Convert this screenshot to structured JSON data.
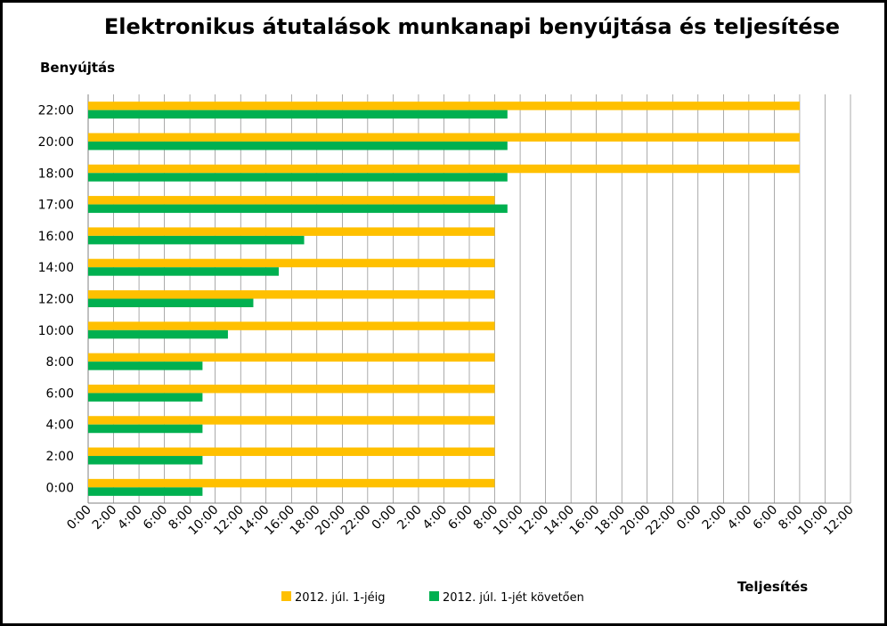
{
  "chart_data": {
    "type": "bar",
    "orientation": "horizontal",
    "title": "Elektronikus átutalások munkanapi benyújtása és teljesítése",
    "ylabel": "Benyújtás",
    "xlabel": "Teljesítés",
    "categories": [
      "22:00",
      "20:00",
      "18:00",
      "17:00",
      "16:00",
      "14:00",
      "12:00",
      "10:00",
      "8:00",
      "6:00",
      "4:00",
      "2:00",
      "0:00"
    ],
    "x_tick_labels": [
      "0:00",
      "2:00",
      "4:00",
      "6:00",
      "8:00",
      "10:00",
      "12:00",
      "14:00",
      "16:00",
      "18:00",
      "20:00",
      "22:00",
      "0:00",
      "2:00",
      "4:00",
      "6:00",
      "8:00",
      "10:00",
      "12:00",
      "14:00",
      "16:00",
      "18:00",
      "20:00",
      "22:00",
      "0:00",
      "2:00",
      "4:00",
      "6:00",
      "8:00",
      "10:00",
      "12:00"
    ],
    "x_unit": "hours",
    "xlim": [
      0,
      60
    ],
    "series": [
      {
        "name": "2012. júl. 1-jéig",
        "color": "#FFC000",
        "values": [
          56,
          56,
          56,
          32,
          32,
          32,
          32,
          32,
          32,
          32,
          32,
          32,
          32
        ]
      },
      {
        "name": "2012. júl. 1-jét követően",
        "color": "#00B050",
        "values": [
          33,
          33,
          33,
          33,
          17,
          15,
          13,
          11,
          9,
          9,
          9,
          9,
          9
        ]
      }
    ],
    "grid": "vertical",
    "legend_position": "bottom"
  }
}
